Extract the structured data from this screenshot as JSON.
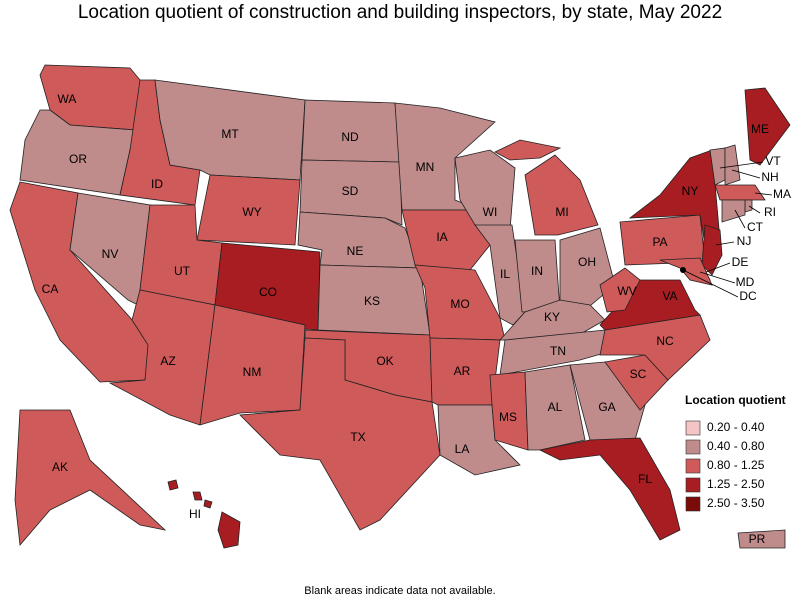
{
  "title": "Location quotient of construction and building inspectors, by state, May 2022",
  "note": "Blank areas indicate data not available.",
  "legend": {
    "title": "Location quotient",
    "items": [
      {
        "label": "0.20 - 0.40",
        "color": "#f5c4c4"
      },
      {
        "label": "0.40 - 0.80",
        "color": "#bf8b8b"
      },
      {
        "label": "0.80 - 1.25",
        "color": "#cf5a5a"
      },
      {
        "label": "1.25 - 2.50",
        "color": "#a81d21"
      },
      {
        "label": "2.50 - 3.50",
        "color": "#7a0b0b"
      }
    ]
  },
  "states": [
    {
      "abbr": "WA",
      "bin": 2
    },
    {
      "abbr": "OR",
      "bin": 1
    },
    {
      "abbr": "CA",
      "bin": 2
    },
    {
      "abbr": "NV",
      "bin": 1
    },
    {
      "abbr": "ID",
      "bin": 2
    },
    {
      "abbr": "MT",
      "bin": 1
    },
    {
      "abbr": "WY",
      "bin": 2
    },
    {
      "abbr": "UT",
      "bin": 2
    },
    {
      "abbr": "CO",
      "bin": 3
    },
    {
      "abbr": "AZ",
      "bin": 2
    },
    {
      "abbr": "NM",
      "bin": 2
    },
    {
      "abbr": "ND",
      "bin": 1
    },
    {
      "abbr": "SD",
      "bin": 1
    },
    {
      "abbr": "NE",
      "bin": 1
    },
    {
      "abbr": "KS",
      "bin": 1
    },
    {
      "abbr": "OK",
      "bin": 2
    },
    {
      "abbr": "TX",
      "bin": 2
    },
    {
      "abbr": "MN",
      "bin": 1
    },
    {
      "abbr": "IA",
      "bin": 2
    },
    {
      "abbr": "MO",
      "bin": 2
    },
    {
      "abbr": "AR",
      "bin": 2
    },
    {
      "abbr": "LA",
      "bin": 1
    },
    {
      "abbr": "WI",
      "bin": 1
    },
    {
      "abbr": "IL",
      "bin": 1
    },
    {
      "abbr": "IN",
      "bin": 1
    },
    {
      "abbr": "MI",
      "bin": 2
    },
    {
      "abbr": "OH",
      "bin": 1
    },
    {
      "abbr": "KY",
      "bin": 1
    },
    {
      "abbr": "TN",
      "bin": 1
    },
    {
      "abbr": "MS",
      "bin": 2
    },
    {
      "abbr": "AL",
      "bin": 1
    },
    {
      "abbr": "GA",
      "bin": 1
    },
    {
      "abbr": "FL",
      "bin": 3
    },
    {
      "abbr": "SC",
      "bin": 2
    },
    {
      "abbr": "NC",
      "bin": 2
    },
    {
      "abbr": "VA",
      "bin": 3
    },
    {
      "abbr": "WV",
      "bin": 2
    },
    {
      "abbr": "PA",
      "bin": 2
    },
    {
      "abbr": "NY",
      "bin": 3
    },
    {
      "abbr": "ME",
      "bin": 3
    },
    {
      "abbr": "VT",
      "bin": 1
    },
    {
      "abbr": "NH",
      "bin": 1
    },
    {
      "abbr": "MA",
      "bin": 2
    },
    {
      "abbr": "RI",
      "bin": 1
    },
    {
      "abbr": "CT",
      "bin": 1
    },
    {
      "abbr": "NJ",
      "bin": 3
    },
    {
      "abbr": "DE",
      "bin": 3
    },
    {
      "abbr": "MD",
      "bin": 2
    },
    {
      "abbr": "DC",
      "bin": 4
    },
    {
      "abbr": "AK",
      "bin": 2
    },
    {
      "abbr": "HI",
      "bin": 3
    },
    {
      "abbr": "PR",
      "bin": 1
    }
  ]
}
